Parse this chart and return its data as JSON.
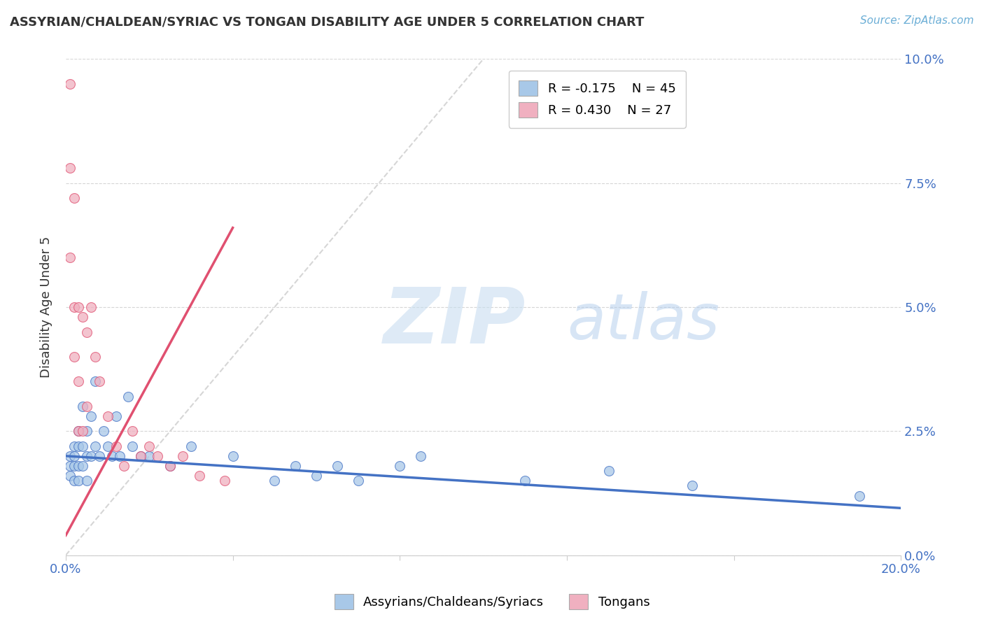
{
  "title": "ASSYRIAN/CHALDEAN/SYRIAC VS TONGAN DISABILITY AGE UNDER 5 CORRELATION CHART",
  "source": "Source: ZipAtlas.com",
  "ylabel": "Disability Age Under 5",
  "xlim": [
    0.0,
    0.2
  ],
  "ylim": [
    0.0,
    0.1
  ],
  "xticks": [
    0.0,
    0.04,
    0.08,
    0.12,
    0.16,
    0.2
  ],
  "yticks": [
    0.0,
    0.025,
    0.05,
    0.075,
    0.1
  ],
  "yticklabels": [
    "0.0%",
    "2.5%",
    "5.0%",
    "7.5%",
    "10.0%"
  ],
  "legend_r1": "R = -0.175",
  "legend_n1": "N = 45",
  "legend_r2": "R = 0.430",
  "legend_n2": "N = 27",
  "color_blue": "#a8c8e8",
  "color_pink": "#f0b0c0",
  "color_blue_line": "#4472c4",
  "color_pink_line": "#e05070",
  "color_dashed": "#cccccc",
  "blue_line_x0": 0.0,
  "blue_line_y0": 0.02,
  "blue_line_x1": 0.2,
  "blue_line_y1": 0.0095,
  "pink_line_x0": 0.0,
  "pink_line_y0": 0.004,
  "pink_line_x1": 0.04,
  "pink_line_y1": 0.066,
  "blue_scatter_x": [
    0.001,
    0.001,
    0.001,
    0.002,
    0.002,
    0.002,
    0.002,
    0.003,
    0.003,
    0.003,
    0.003,
    0.004,
    0.004,
    0.004,
    0.005,
    0.005,
    0.005,
    0.006,
    0.006,
    0.007,
    0.007,
    0.008,
    0.009,
    0.01,
    0.011,
    0.012,
    0.013,
    0.015,
    0.016,
    0.018,
    0.02,
    0.025,
    0.03,
    0.04,
    0.05,
    0.055,
    0.06,
    0.065,
    0.07,
    0.08,
    0.085,
    0.11,
    0.13,
    0.15,
    0.19
  ],
  "blue_scatter_y": [
    0.02,
    0.018,
    0.016,
    0.022,
    0.02,
    0.018,
    0.015,
    0.025,
    0.022,
    0.018,
    0.015,
    0.03,
    0.022,
    0.018,
    0.025,
    0.02,
    0.015,
    0.028,
    0.02,
    0.035,
    0.022,
    0.02,
    0.025,
    0.022,
    0.02,
    0.028,
    0.02,
    0.032,
    0.022,
    0.02,
    0.02,
    0.018,
    0.022,
    0.02,
    0.015,
    0.018,
    0.016,
    0.018,
    0.015,
    0.018,
    0.02,
    0.015,
    0.017,
    0.014,
    0.012
  ],
  "pink_scatter_x": [
    0.001,
    0.001,
    0.001,
    0.002,
    0.002,
    0.002,
    0.003,
    0.003,
    0.003,
    0.004,
    0.004,
    0.005,
    0.005,
    0.006,
    0.007,
    0.008,
    0.01,
    0.012,
    0.014,
    0.016,
    0.018,
    0.02,
    0.022,
    0.025,
    0.028,
    0.032,
    0.038
  ],
  "pink_scatter_y": [
    0.095,
    0.078,
    0.06,
    0.072,
    0.05,
    0.04,
    0.05,
    0.035,
    0.025,
    0.048,
    0.025,
    0.045,
    0.03,
    0.05,
    0.04,
    0.035,
    0.028,
    0.022,
    0.018,
    0.025,
    0.02,
    0.022,
    0.02,
    0.018,
    0.02,
    0.016,
    0.015
  ]
}
